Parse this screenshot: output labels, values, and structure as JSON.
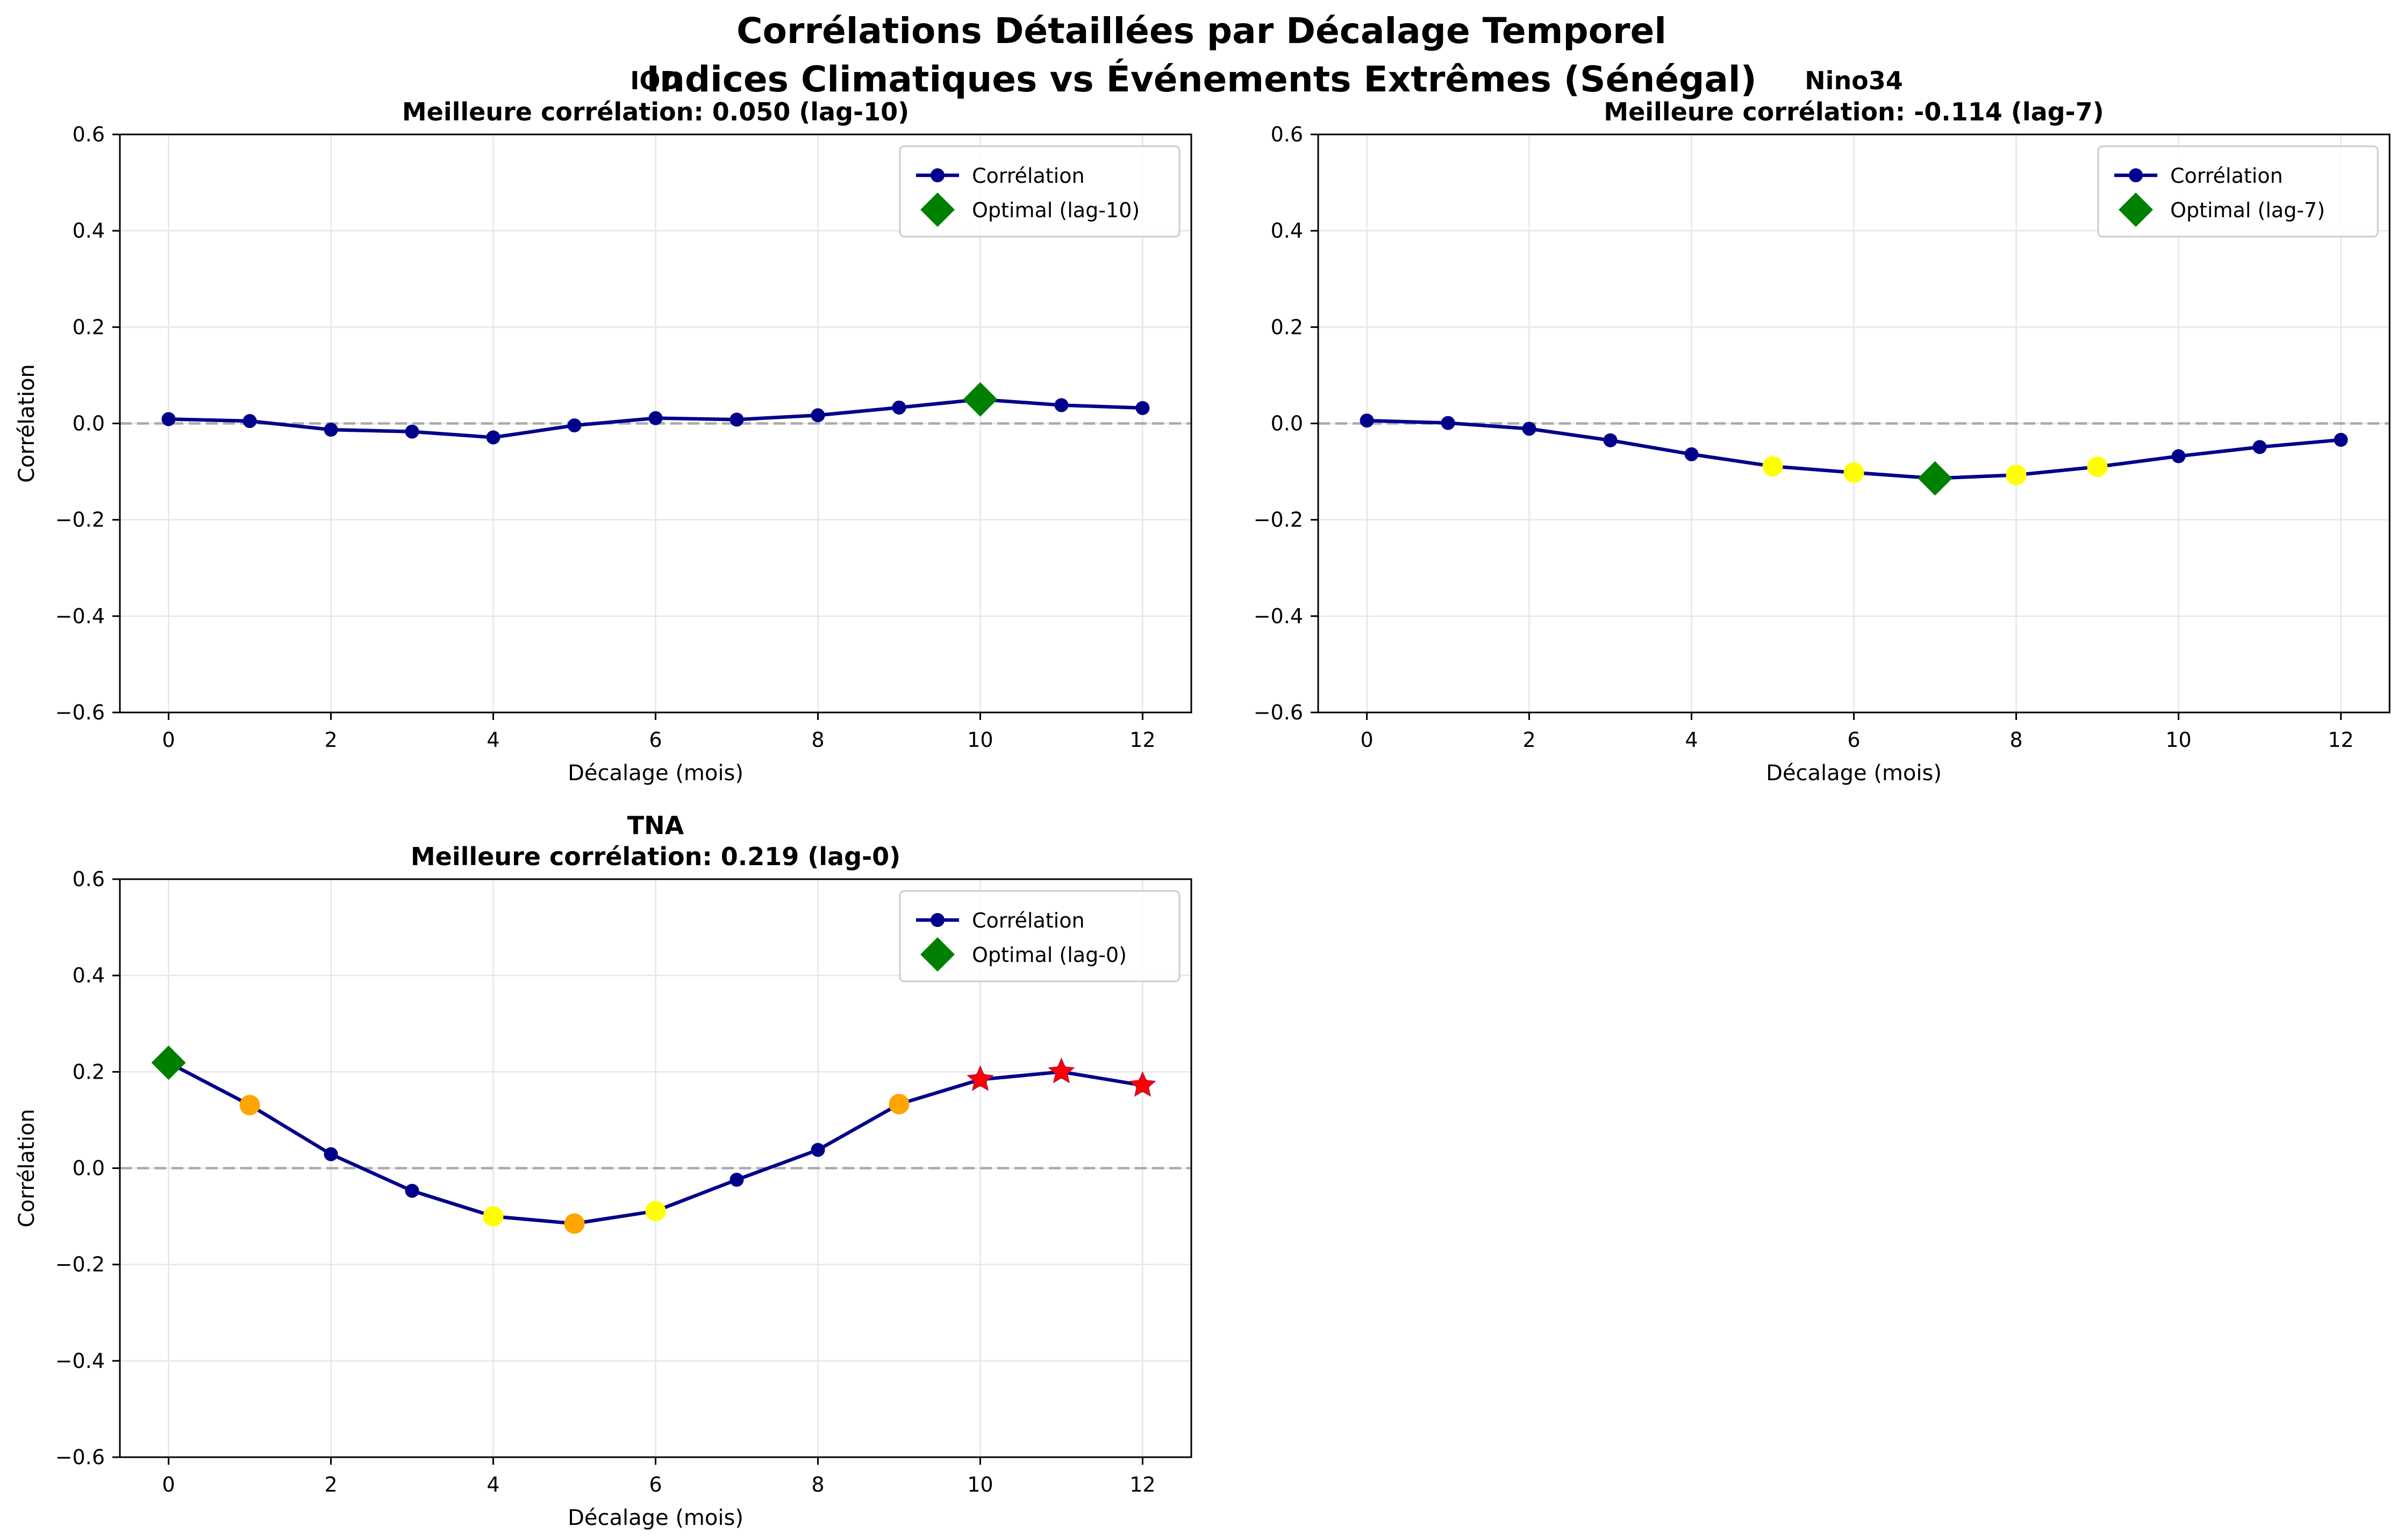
{
  "figure": {
    "title_line1": "Corrélations Détaillées par Décalage Temporel",
    "title_line2": "Indices Climatiques vs Événements Extrêmes (Sénégal)"
  },
  "colors": {
    "line": "#00008b",
    "optimal": "#008000",
    "zero_line": "#aaaaaa",
    "grid": "#e6e6e6",
    "marker_yellow": "#ffff00",
    "marker_orange": "#ffa500",
    "marker_red": "#ff0000"
  },
  "chart_data": [
    {
      "type": "line",
      "title": "IOD",
      "subtitle": "Meilleure corrélation: 0.050 (lag-10)",
      "xlabel": "Décalage (mois)",
      "ylabel": "Corrélation",
      "xlim": [
        -0.6,
        12.6
      ],
      "ylim": [
        -0.6,
        0.6
      ],
      "xticks": [
        0,
        2,
        4,
        6,
        8,
        10,
        12
      ],
      "yticks": [
        -0.6,
        -0.4,
        -0.2,
        0.0,
        0.2,
        0.4,
        0.6
      ],
      "grid": true,
      "legend_position": "top-right",
      "series": [
        {
          "name": "Corrélation",
          "x": [
            0,
            1,
            2,
            3,
            4,
            5,
            6,
            7,
            8,
            9,
            10,
            11,
            12
          ],
          "values": [
            0.009,
            0.005,
            -0.013,
            -0.017,
            -0.029,
            -0.004,
            0.011,
            0.008,
            0.017,
            0.033,
            0.05,
            0.038,
            0.032
          ]
        }
      ],
      "highlights": [],
      "optimal": {
        "label": "Optimal (lag-10)",
        "x": 10,
        "y": 0.05
      }
    },
    {
      "type": "line",
      "title": "Nino34",
      "subtitle": "Meilleure corrélation: -0.114 (lag-7)",
      "xlabel": "Décalage (mois)",
      "ylabel": "Corrélation",
      "xlim": [
        -0.6,
        12.6
      ],
      "ylim": [
        -0.6,
        0.6
      ],
      "xticks": [
        0,
        2,
        4,
        6,
        8,
        10,
        12
      ],
      "yticks": [
        -0.6,
        -0.4,
        -0.2,
        0.0,
        0.2,
        0.4,
        0.6
      ],
      "grid": true,
      "legend_position": "top-right",
      "series": [
        {
          "name": "Corrélation",
          "x": [
            0,
            1,
            2,
            3,
            4,
            5,
            6,
            7,
            8,
            9,
            10,
            11,
            12
          ],
          "values": [
            0.006,
            0.001,
            -0.011,
            -0.035,
            -0.064,
            -0.089,
            -0.102,
            -0.114,
            -0.107,
            -0.09,
            -0.068,
            -0.049,
            -0.034
          ]
        }
      ],
      "highlights": [
        {
          "x": 5,
          "y": -0.089,
          "color": "#ffff00",
          "shape": "circle"
        },
        {
          "x": 6,
          "y": -0.102,
          "color": "#ffff00",
          "shape": "circle"
        },
        {
          "x": 8,
          "y": -0.107,
          "color": "#ffff00",
          "shape": "circle"
        },
        {
          "x": 9,
          "y": -0.09,
          "color": "#ffff00",
          "shape": "circle"
        }
      ],
      "optimal": {
        "label": "Optimal (lag-7)",
        "x": 7,
        "y": -0.114
      }
    },
    {
      "type": "line",
      "title": "TNA",
      "subtitle": "Meilleure corrélation: 0.219 (lag-0)",
      "xlabel": "Décalage (mois)",
      "ylabel": "Corrélation",
      "xlim": [
        -0.6,
        12.6
      ],
      "ylim": [
        -0.6,
        0.6
      ],
      "xticks": [
        0,
        2,
        4,
        6,
        8,
        10,
        12
      ],
      "yticks": [
        -0.6,
        -0.4,
        -0.2,
        0.0,
        0.2,
        0.4,
        0.6
      ],
      "grid": true,
      "legend_position": "top-right",
      "series": [
        {
          "name": "Corrélation",
          "x": [
            0,
            1,
            2,
            3,
            4,
            5,
            6,
            7,
            8,
            9,
            10,
            11,
            12
          ],
          "values": [
            0.219,
            0.131,
            0.029,
            -0.047,
            -0.1,
            -0.115,
            -0.089,
            -0.024,
            0.038,
            0.133,
            0.184,
            0.2,
            0.172
          ]
        }
      ],
      "highlights": [
        {
          "x": 1,
          "y": 0.131,
          "color": "#ffa500",
          "shape": "circle"
        },
        {
          "x": 4,
          "y": -0.1,
          "color": "#ffff00",
          "shape": "circle"
        },
        {
          "x": 5,
          "y": -0.115,
          "color": "#ffa500",
          "shape": "circle"
        },
        {
          "x": 6,
          "y": -0.089,
          "color": "#ffff00",
          "shape": "circle"
        },
        {
          "x": 9,
          "y": 0.133,
          "color": "#ffa500",
          "shape": "circle"
        },
        {
          "x": 10,
          "y": 0.184,
          "color": "#ff0000",
          "shape": "star"
        },
        {
          "x": 11,
          "y": 0.2,
          "color": "#ff0000",
          "shape": "star"
        },
        {
          "x": 12,
          "y": 0.172,
          "color": "#ff0000",
          "shape": "star"
        }
      ],
      "optimal": {
        "label": "Optimal (lag-0)",
        "x": 0,
        "y": 0.219
      }
    }
  ]
}
